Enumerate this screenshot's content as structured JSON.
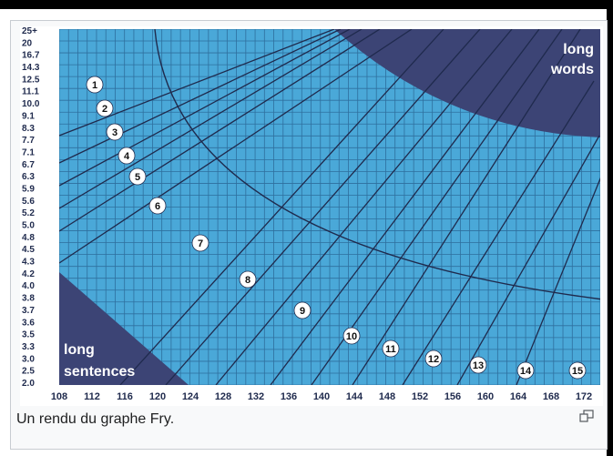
{
  "caption": "Un rendu du graphe Fry.",
  "enlarge_icon": "enlarge-icon",
  "colors": {
    "grid_bg": "#4aa8d8",
    "grid_line": "#2e6f9e",
    "dark_region": "#3c4475",
    "ink": "#1f2a4d"
  },
  "chart_data": {
    "type": "line",
    "title": "",
    "xlabel": "",
    "ylabel": "",
    "x_ticks": [
      "108",
      "112",
      "116",
      "120",
      "124",
      "128",
      "132",
      "136",
      "140",
      "144",
      "148",
      "152",
      "156",
      "160",
      "164",
      "168",
      "172"
    ],
    "y_ticks": [
      "25+",
      "20",
      "16.7",
      "14.3",
      "12.5",
      "11.1",
      "10.0",
      "9.1",
      "8.3",
      "7.7",
      "7.1",
      "6.7",
      "6.3",
      "5.9",
      "5.6",
      "5.2",
      "5.0",
      "4.8",
      "4.5",
      "4.3",
      "4.2",
      "4.0",
      "3.8",
      "3.7",
      "3.6",
      "3.5",
      "3.3",
      "3.0",
      "2.5",
      "2.0"
    ],
    "xlim": [
      108,
      174
    ],
    "grade_labels": [
      "1",
      "2",
      "3",
      "4",
      "5",
      "6",
      "7",
      "8",
      "9",
      "10",
      "11",
      "12",
      "13",
      "14",
      "15"
    ],
    "regions": [
      {
        "label": "long\nwords",
        "line1": "long",
        "line2": "words"
      },
      {
        "label": "long\nsentences",
        "line1": "long",
        "line2": "sentences"
      }
    ],
    "grid": true
  }
}
